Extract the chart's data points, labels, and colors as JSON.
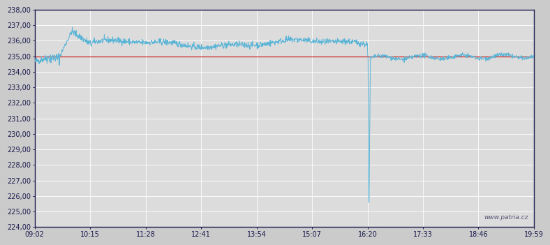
{
  "bg_color": "#cbcbcb",
  "plot_bg_color": "#dcdcdc",
  "line_color": "#5ab4d6",
  "ref_line_color": "#cc2222",
  "ref_value": 235.0,
  "y_min": 224.0,
  "y_max": 238.0,
  "y_ticks": [
    224.0,
    225.0,
    226.0,
    227.0,
    228.0,
    229.0,
    230.0,
    231.0,
    232.0,
    233.0,
    234.0,
    235.0,
    236.0,
    237.0,
    238.0
  ],
  "x_tick_labels": [
    "09:02",
    "10:15",
    "11:28",
    "12:41",
    "13:54",
    "15:07",
    "16:20",
    "17:33",
    "18:46",
    "19:59"
  ],
  "times_min": [
    0,
    73,
    146,
    219,
    292,
    365,
    438,
    511,
    584,
    657
  ],
  "total_min": 657,
  "watermark": "www.patria.cz",
  "noise_seed": 42,
  "figwidth": 7.8,
  "figheight": 3.5,
  "dpi": 100
}
